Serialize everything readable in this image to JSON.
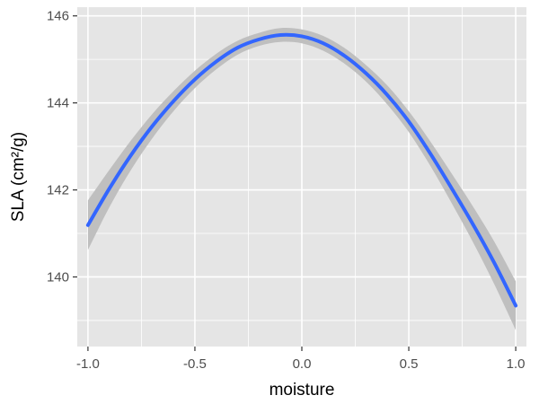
{
  "chart_data": {
    "type": "line",
    "xlabel": "moisture",
    "ylabel": "SLA (cm²/g)",
    "xlim": [
      -1.05,
      1.05
    ],
    "ylim": [
      138.4,
      146.2
    ],
    "x_ticks": [
      -1.0,
      -0.5,
      0.0,
      0.5,
      1.0
    ],
    "x_tick_labels": [
      "-1.0",
      "-0.5",
      "0.0",
      "0.5",
      "1.0"
    ],
    "y_ticks": [
      140,
      142,
      144,
      146
    ],
    "y_tick_labels": [
      "140",
      "142",
      "144",
      "146"
    ],
    "grid": true,
    "background": "#e5e5e5",
    "grid_color": "#ffffff",
    "series": [
      {
        "color": "#3366ff",
        "confidence_band_color": "#bfbfbf",
        "x": [
          -1.0,
          -0.9,
          -0.8,
          -0.7,
          -0.6,
          -0.5,
          -0.4,
          -0.3,
          -0.2,
          -0.1,
          0.0,
          0.1,
          0.2,
          0.3,
          0.4,
          0.5,
          0.6,
          0.7,
          0.8,
          0.9,
          1.0
        ],
        "y": [
          141.19,
          142.03,
          142.79,
          143.46,
          144.04,
          144.54,
          144.95,
          145.27,
          145.46,
          145.56,
          145.53,
          145.37,
          145.08,
          144.68,
          144.18,
          143.57,
          142.84,
          142.04,
          141.21,
          140.32,
          139.34
        ],
        "lower": [
          140.62,
          141.6,
          142.45,
          143.18,
          143.81,
          144.34,
          144.77,
          145.11,
          145.31,
          145.4,
          145.37,
          145.2,
          144.9,
          144.49,
          143.96,
          143.33,
          142.56,
          141.7,
          140.8,
          139.83,
          138.78
        ],
        "upper": [
          141.76,
          142.46,
          143.13,
          143.74,
          144.27,
          144.74,
          145.13,
          145.43,
          145.61,
          145.72,
          145.69,
          145.54,
          145.26,
          144.87,
          144.4,
          143.81,
          143.12,
          142.38,
          141.62,
          140.81,
          139.9
        ]
      }
    ]
  }
}
